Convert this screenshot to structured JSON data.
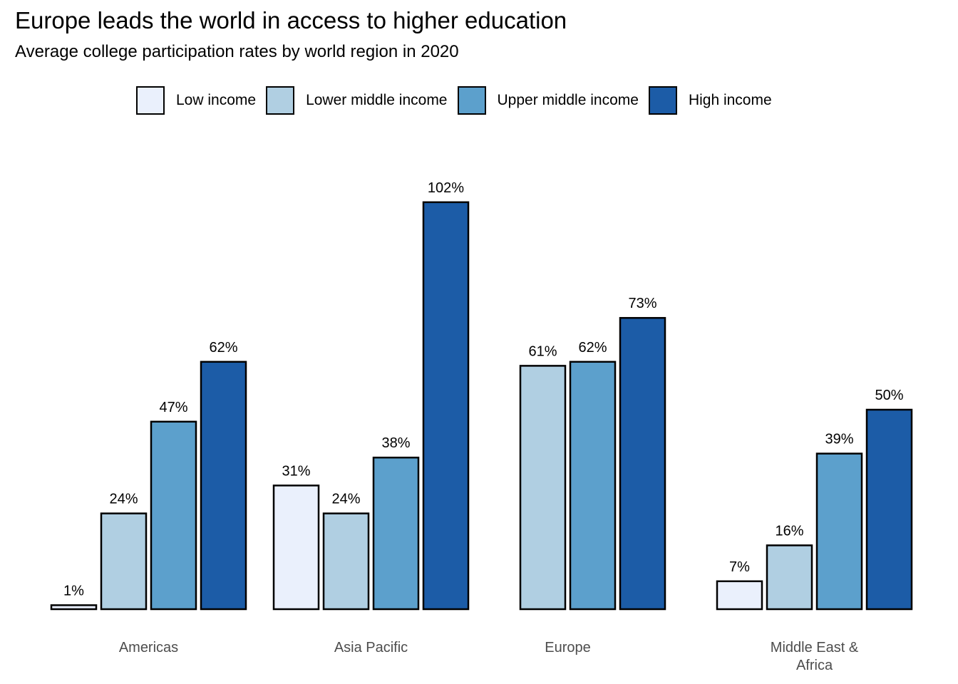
{
  "title": "Europe leads the world in access to higher education",
  "subtitle": "Average college participation rates by world region in 2020",
  "colors": {
    "low_income": "#EAF0FC",
    "lower_middle_income": "#B0CFE2",
    "upper_middle_income": "#5CA0CC",
    "high_income": "#1C5CA7",
    "bar_outline": "#000000",
    "category_label": "#4D4D4D"
  },
  "legend": [
    {
      "label": "Low income",
      "color": "#EAF0FC"
    },
    {
      "label": "Lower middle income",
      "color": "#B0CFE2"
    },
    {
      "label": "Upper middle income",
      "color": "#5CA0CC"
    },
    {
      "label": "High income",
      "color": "#1C5CA7"
    }
  ],
  "chart_data": {
    "type": "bar",
    "title": "Europe leads the world in access to higher education",
    "subtitle": "Average college participation rates by world region in 2020",
    "xlabel": "",
    "ylabel": "",
    "ylim": [
      0,
      110
    ],
    "grid": false,
    "legend_position": "top",
    "value_suffix": "%",
    "categories": [
      "Americas",
      "Asia Pacific",
      "Europe",
      "Middle East & Africa"
    ],
    "category_labels": [
      [
        "Americas"
      ],
      [
        "Asia Pacific"
      ],
      [
        "Europe"
      ],
      [
        "Middle East &",
        "Africa"
      ]
    ],
    "series": [
      {
        "name": "Low income",
        "color": "#EAF0FC",
        "values": [
          1,
          31,
          null,
          7
        ]
      },
      {
        "name": "Lower middle income",
        "color": "#B0CFE2",
        "values": [
          24,
          24,
          61,
          16
        ]
      },
      {
        "name": "Upper middle income",
        "color": "#5CA0CC",
        "values": [
          47,
          38,
          62,
          39
        ]
      },
      {
        "name": "High income",
        "color": "#1C5CA7",
        "values": [
          62,
          102,
          73,
          50
        ]
      }
    ]
  }
}
